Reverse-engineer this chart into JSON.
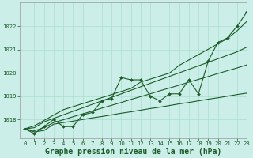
{
  "title": "Graphe pression niveau de la mer (hPa)",
  "bg_color": "#cceee8",
  "grid_color": "#aaddcc",
  "line_color": "#1a5c2a",
  "xlim": [
    -0.5,
    23
  ],
  "ylim": [
    1017.2,
    1023.0
  ],
  "yticks": [
    1018,
    1019,
    1020,
    1021,
    1022
  ],
  "xticks": [
    0,
    1,
    2,
    3,
    4,
    5,
    6,
    7,
    8,
    9,
    10,
    11,
    12,
    13,
    14,
    15,
    16,
    17,
    18,
    19,
    20,
    21,
    22,
    23
  ],
  "series_main": [
    1017.6,
    1017.4,
    1017.7,
    1018.0,
    1017.7,
    1017.7,
    1018.2,
    1018.3,
    1018.8,
    1018.9,
    1019.8,
    1019.7,
    1019.7,
    1019.0,
    1018.8,
    1019.1,
    1019.1,
    1019.7,
    1019.1,
    1020.5,
    1021.3,
    1021.5,
    1022.0,
    1022.6
  ],
  "series_lines": [
    [
      1017.6,
      1017.47,
      1017.53,
      1017.8,
      1017.87,
      1017.93,
      1018.0,
      1018.07,
      1018.13,
      1018.2,
      1018.27,
      1018.33,
      1018.4,
      1018.47,
      1018.53,
      1018.6,
      1018.67,
      1018.73,
      1018.8,
      1018.87,
      1018.93,
      1019.0,
      1019.07,
      1019.13
    ],
    [
      1017.6,
      1017.52,
      1017.65,
      1017.87,
      1017.99,
      1018.12,
      1018.24,
      1018.36,
      1018.49,
      1018.61,
      1018.73,
      1018.86,
      1018.98,
      1019.1,
      1019.23,
      1019.35,
      1019.47,
      1019.6,
      1019.72,
      1019.84,
      1019.97,
      1020.09,
      1020.21,
      1020.34
    ],
    [
      1017.6,
      1017.65,
      1017.9,
      1018.05,
      1018.2,
      1018.35,
      1018.5,
      1018.65,
      1018.8,
      1018.95,
      1019.1,
      1019.25,
      1019.4,
      1019.55,
      1019.7,
      1019.85,
      1020.0,
      1020.15,
      1020.3,
      1020.45,
      1020.6,
      1020.75,
      1020.9,
      1021.1
    ],
    [
      1017.6,
      1017.73,
      1017.96,
      1018.19,
      1018.42,
      1018.55,
      1018.68,
      1018.81,
      1018.94,
      1019.07,
      1019.2,
      1019.33,
      1019.6,
      1019.73,
      1019.86,
      1019.99,
      1020.32,
      1020.55,
      1020.78,
      1021.01,
      1021.24,
      1021.47,
      1021.8,
      1022.2
    ]
  ],
  "marker": "D",
  "marker_size": 2.0,
  "linewidth_main": 0.8,
  "linewidth_other": 0.8,
  "title_fontsize": 7.0,
  "tick_fontsize": 5.2
}
